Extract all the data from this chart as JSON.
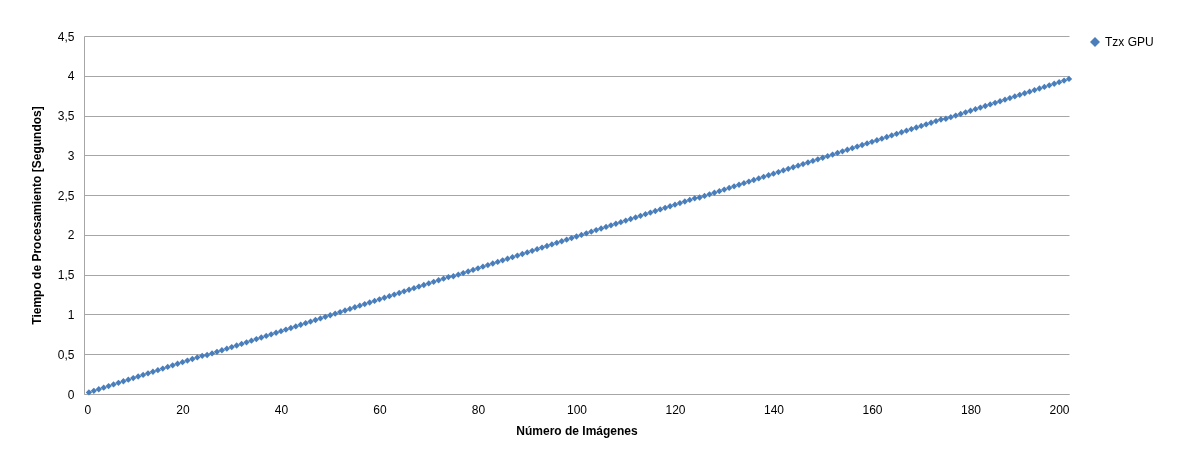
{
  "chart_data": {
    "type": "scatter",
    "xlabel": "Número de Imágenes",
    "ylabel": "Tiempo de Procesamiento [Segundos]",
    "x": [
      1,
      2,
      3,
      4,
      5,
      6,
      7,
      8,
      9,
      10,
      11,
      12,
      13,
      14,
      15,
      16,
      17,
      18,
      19,
      20,
      21,
      22,
      23,
      24,
      25,
      26,
      27,
      28,
      29,
      30,
      31,
      32,
      33,
      34,
      35,
      36,
      37,
      38,
      39,
      40,
      41,
      42,
      43,
      44,
      45,
      46,
      47,
      48,
      49,
      50,
      51,
      52,
      53,
      54,
      55,
      56,
      57,
      58,
      59,
      60,
      61,
      62,
      63,
      64,
      65,
      66,
      67,
      68,
      69,
      70,
      71,
      72,
      73,
      74,
      75,
      76,
      77,
      78,
      79,
      80,
      81,
      82,
      83,
      84,
      85,
      86,
      87,
      88,
      89,
      90,
      91,
      92,
      93,
      94,
      95,
      96,
      97,
      98,
      99,
      100,
      101,
      102,
      103,
      104,
      105,
      106,
      107,
      108,
      109,
      110,
      111,
      112,
      113,
      114,
      115,
      116,
      117,
      118,
      119,
      120,
      121,
      122,
      123,
      124,
      125,
      126,
      127,
      128,
      129,
      130,
      131,
      132,
      133,
      134,
      135,
      136,
      137,
      138,
      139,
      140,
      141,
      142,
      143,
      144,
      145,
      146,
      147,
      148,
      149,
      150,
      151,
      152,
      153,
      154,
      155,
      156,
      157,
      158,
      159,
      160,
      161,
      162,
      163,
      164,
      165,
      166,
      167,
      168,
      169,
      170,
      171,
      172,
      173,
      174,
      175,
      176,
      177,
      178,
      179,
      180,
      181,
      182,
      183,
      184,
      185,
      186,
      187,
      188,
      189,
      190,
      191,
      192,
      193,
      194,
      195,
      196,
      197,
      198,
      199,
      200
    ],
    "series": [
      {
        "name": "Tzx GPU",
        "color": "#4a7ebb",
        "values": [
          0.02,
          0.04,
          0.06,
          0.08,
          0.1,
          0.12,
          0.14,
          0.16,
          0.18,
          0.2,
          0.22,
          0.24,
          0.26,
          0.28,
          0.3,
          0.32,
          0.34,
          0.36,
          0.38,
          0.4,
          0.42,
          0.44,
          0.46,
          0.48,
          0.49,
          0.51,
          0.53,
          0.55,
          0.57,
          0.59,
          0.61,
          0.63,
          0.65,
          0.67,
          0.69,
          0.71,
          0.73,
          0.75,
          0.77,
          0.79,
          0.81,
          0.83,
          0.85,
          0.87,
          0.89,
          0.91,
          0.93,
          0.95,
          0.97,
          0.99,
          1.01,
          1.03,
          1.05,
          1.07,
          1.09,
          1.11,
          1.13,
          1.15,
          1.17,
          1.19,
          1.21,
          1.23,
          1.25,
          1.27,
          1.29,
          1.31,
          1.33,
          1.35,
          1.37,
          1.39,
          1.41,
          1.43,
          1.45,
          1.47,
          1.48,
          1.5,
          1.52,
          1.54,
          1.56,
          1.58,
          1.6,
          1.62,
          1.64,
          1.66,
          1.68,
          1.7,
          1.72,
          1.74,
          1.76,
          1.78,
          1.8,
          1.82,
          1.84,
          1.86,
          1.88,
          1.9,
          1.92,
          1.94,
          1.96,
          1.98,
          2,
          2.02,
          2.04,
          2.06,
          2.08,
          2.1,
          2.12,
          2.14,
          2.16,
          2.18,
          2.2,
          2.22,
          2.24,
          2.26,
          2.28,
          2.3,
          2.32,
          2.34,
          2.36,
          2.38,
          2.4,
          2.42,
          2.44,
          2.46,
          2.47,
          2.49,
          2.51,
          2.53,
          2.55,
          2.57,
          2.59,
          2.61,
          2.63,
          2.65,
          2.67,
          2.69,
          2.71,
          2.73,
          2.75,
          2.77,
          2.79,
          2.81,
          2.83,
          2.85,
          2.87,
          2.89,
          2.91,
          2.93,
          2.95,
          2.97,
          2.99,
          3.01,
          3.03,
          3.05,
          3.07,
          3.09,
          3.11,
          3.13,
          3.15,
          3.17,
          3.19,
          3.21,
          3.23,
          3.25,
          3.27,
          3.29,
          3.31,
          3.33,
          3.35,
          3.37,
          3.39,
          3.41,
          3.43,
          3.45,
          3.46,
          3.48,
          3.5,
          3.52,
          3.54,
          3.56,
          3.58,
          3.6,
          3.62,
          3.64,
          3.66,
          3.68,
          3.7,
          3.72,
          3.74,
          3.76,
          3.78,
          3.8,
          3.82,
          3.84,
          3.86,
          3.88,
          3.9,
          3.92,
          3.94,
          3.96
        ]
      }
    ],
    "xlim": [
      0,
      200
    ],
    "xticks": [
      0,
      20,
      40,
      60,
      80,
      100,
      120,
      140,
      160,
      180,
      200
    ],
    "ylim": [
      0,
      4.5
    ],
    "yticks": [
      0,
      {
        "value": 0.5,
        "label": "0,5"
      },
      1,
      {
        "value": 1.5,
        "label": "1,5"
      },
      2,
      {
        "value": 2.5,
        "label": "2,5"
      },
      3,
      {
        "value": 3.5,
        "label": "3,5"
      },
      4,
      {
        "value": 4.5,
        "label": "4,5"
      }
    ],
    "grid": "y",
    "legend": "right",
    "marker": "diamond"
  }
}
